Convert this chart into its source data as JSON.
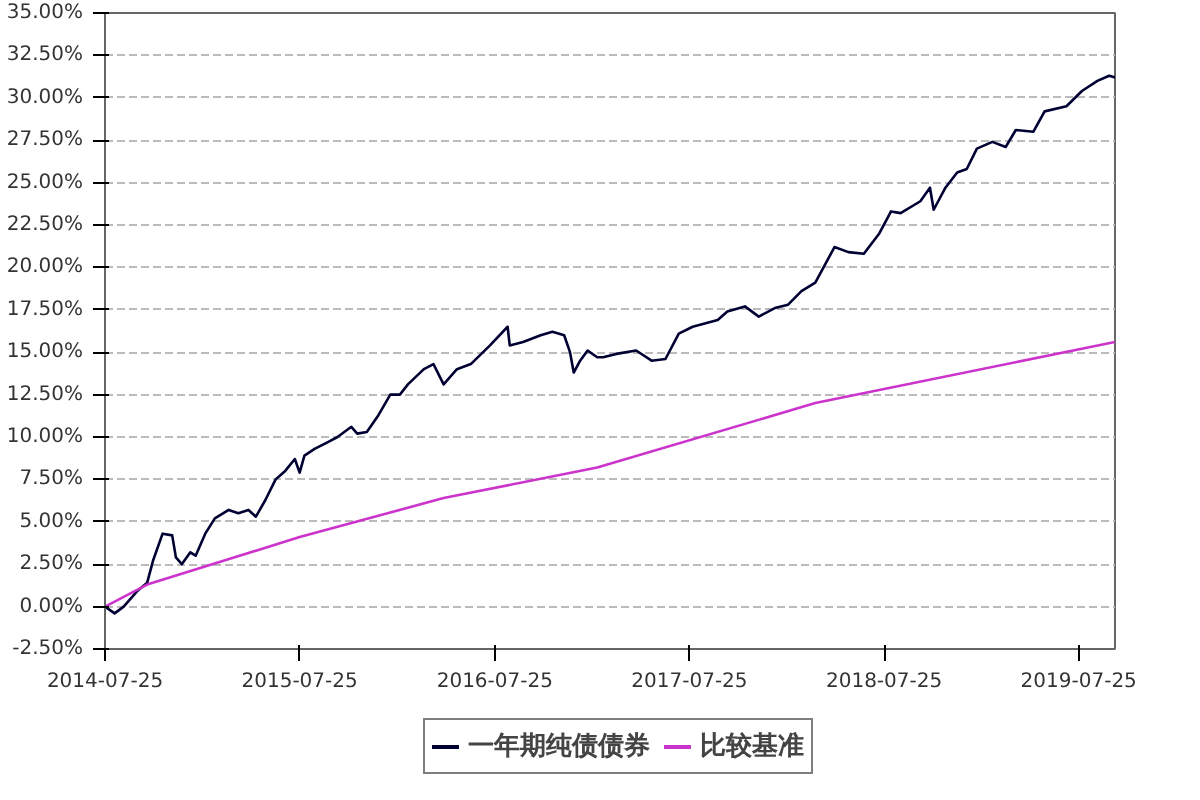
{
  "chart_data": {
    "type": "line",
    "xlim": [
      "2014-07-25",
      "2019-10-01"
    ],
    "xticks": [
      "2014-07-25",
      "2015-07-25",
      "2016-07-25",
      "2017-07-25",
      "2018-07-25",
      "2019-07-25"
    ],
    "ylim": [
      -2.5,
      35
    ],
    "yticks": [
      {
        "value": -2.5,
        "label": "-2.50%"
      },
      {
        "value": 0,
        "label": "0.00%"
      },
      {
        "value": 2.5,
        "label": "2.50%"
      },
      {
        "value": 5,
        "label": "5.00%"
      },
      {
        "value": 7.5,
        "label": "7.50%"
      },
      {
        "value": 10,
        "label": "10.00%"
      },
      {
        "value": 12.5,
        "label": "12.50%"
      },
      {
        "value": 15,
        "label": "15.00%"
      },
      {
        "value": 17.5,
        "label": "17.50%"
      },
      {
        "value": 20,
        "label": "20.00%"
      },
      {
        "value": 22.5,
        "label": "22.50%"
      },
      {
        "value": 25,
        "label": "25.00%"
      },
      {
        "value": 27.5,
        "label": "27.50%"
      },
      {
        "value": 30,
        "label": "30.00%"
      },
      {
        "value": 32.5,
        "label": "32.50%"
      },
      {
        "value": 35,
        "label": "35.00%"
      }
    ],
    "grid": "y",
    "legend": "bottom",
    "marker": "none",
    "line_style": "solid",
    "series": [
      {
        "name": "一年期纯债债券",
        "color": "#000033",
        "x": [
          "2014-07-25",
          "2014-08-12",
          "2014-08-29",
          "2014-09-23",
          "2014-10-12",
          "2014-10-23",
          "2014-11-10",
          "2014-11-28",
          "2014-12-05",
          "2014-12-16",
          "2015-01-01",
          "2015-01-11",
          "2015-01-29",
          "2015-02-16",
          "2015-03-14",
          "2015-04-01",
          "2015-04-20",
          "2015-05-04",
          "2015-05-22",
          "2015-06-10",
          "2015-06-28",
          "2015-07-16",
          "2015-07-25",
          "2015-08-03",
          "2015-08-22",
          "2015-09-16",
          "2015-10-04",
          "2015-10-30",
          "2015-11-10",
          "2015-11-28",
          "2015-12-20",
          "2016-01-11",
          "2016-01-29",
          "2016-02-13",
          "2016-03-14",
          "2016-04-01",
          "2016-04-20",
          "2016-05-15",
          "2016-06-10",
          "2016-07-16",
          "2016-08-18",
          "2016-08-22",
          "2016-09-16",
          "2016-10-19",
          "2016-11-10",
          "2016-12-02",
          "2016-12-13",
          "2016-12-20",
          "2017-01-01",
          "2017-01-15",
          "2017-02-02",
          "2017-02-13",
          "2017-03-10",
          "2017-04-16",
          "2017-05-15",
          "2017-06-10",
          "2017-07-05",
          "2017-07-31",
          "2017-09-16",
          "2017-10-04",
          "2017-11-06",
          "2017-12-02",
          "2018-01-01",
          "2018-01-26",
          "2018-02-20",
          "2018-03-18",
          "2018-04-23",
          "2018-05-19",
          "2018-06-17",
          "2018-07-16",
          "2018-08-07",
          "2018-08-25",
          "2018-10-01",
          "2018-10-19",
          "2018-10-26",
          "2018-11-17",
          "2018-12-09",
          "2018-12-27",
          "2019-01-15",
          "2019-02-13",
          "2019-03-10",
          "2019-03-29",
          "2019-05-01",
          "2019-05-22",
          "2019-07-02",
          "2019-07-31",
          "2019-08-29",
          "2019-09-20",
          "2019-10-01"
        ],
        "values": [
          0,
          -0.4,
          0,
          0.9,
          1.4,
          2.7,
          4.3,
          4.2,
          2.9,
          2.5,
          3.2,
          3.0,
          4.3,
          5.2,
          5.7,
          5.5,
          5.7,
          5.3,
          6.3,
          7.5,
          8.0,
          8.7,
          7.9,
          8.9,
          9.3,
          9.7,
          10.0,
          10.6,
          10.2,
          10.3,
          11.3,
          12.5,
          12.5,
          13.1,
          14.0,
          14.3,
          13.1,
          14.0,
          14.3,
          15.4,
          16.5,
          15.4,
          15.6,
          16.0,
          16.2,
          16.0,
          15.0,
          13.8,
          14.5,
          15.1,
          14.7,
          14.7,
          14.9,
          15.1,
          14.5,
          14.6,
          16.1,
          16.5,
          16.9,
          17.4,
          17.7,
          17.1,
          17.6,
          17.8,
          18.6,
          19.1,
          21.2,
          20.9,
          20.8,
          22.0,
          23.3,
          23.2,
          23.9,
          24.7,
          23.4,
          24.7,
          25.6,
          25.8,
          27.0,
          27.4,
          27.1,
          28.1,
          28.0,
          29.2,
          29.5,
          30.4,
          31.0,
          31.3,
          31.2
        ]
      },
      {
        "name": "比较基准",
        "color": "#cc33cc",
        "x": [
          "2014-07-25",
          "2014-10-12",
          "2015-07-25",
          "2016-04-20",
          "2017-02-02",
          "2018-03-18",
          "2019-10-01"
        ],
        "values": [
          0,
          1.3,
          4.1,
          6.4,
          8.2,
          12.0,
          15.6
        ]
      }
    ]
  }
}
